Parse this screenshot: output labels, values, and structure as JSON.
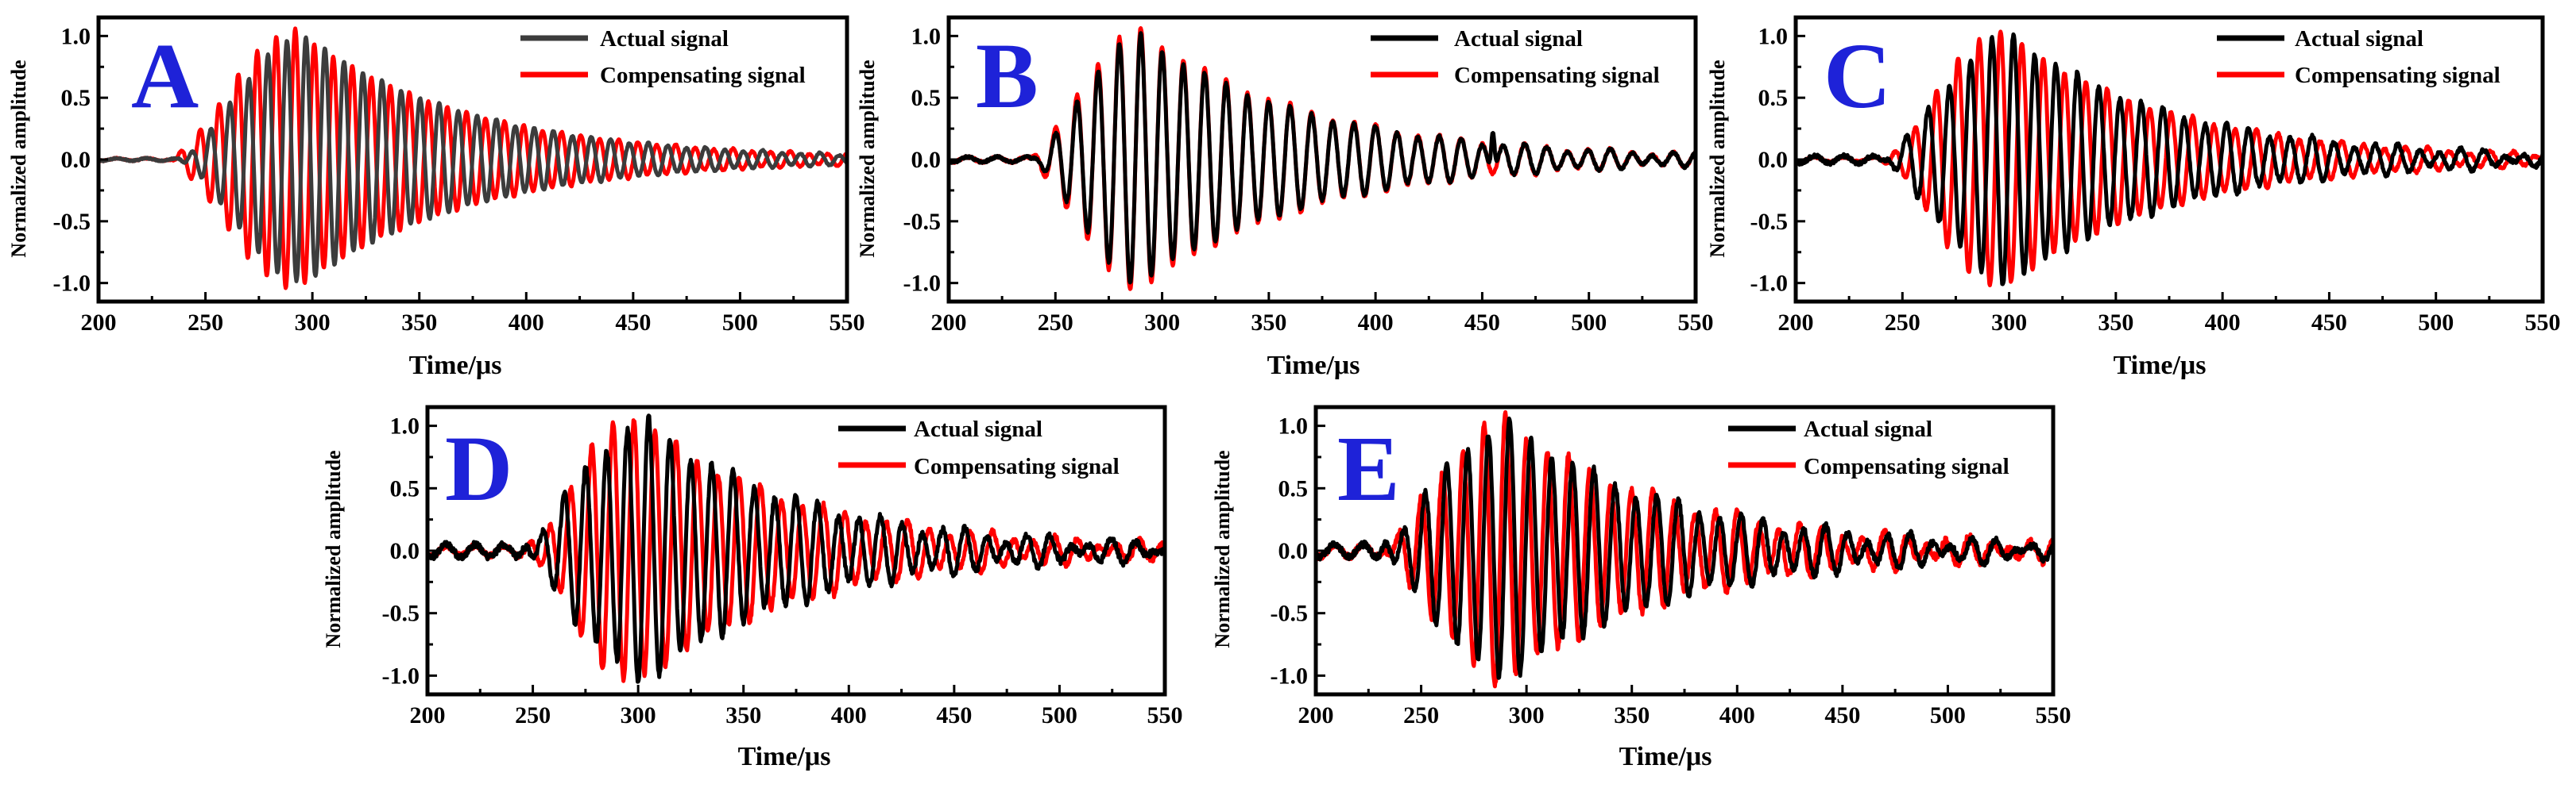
{
  "chart_data": [
    {
      "type": "line",
      "panel": "A",
      "xlabel": "Time/μs",
      "ylabel": "Normalized amplitude",
      "xlim": [
        200,
        550
      ],
      "ylim": [
        -1.15,
        1.15
      ],
      "xticks": [
        "200",
        "250",
        "300",
        "350",
        "400",
        "450",
        "500",
        "550"
      ],
      "yticks": [
        "-1.0",
        "-0.5",
        "0.0",
        "0.5",
        "1.0"
      ],
      "series": [
        {
          "name": "Actual signal",
          "color": "#3c3c3c",
          "onset_us": 236,
          "peak_time_us": 297,
          "peak_amplitude": 1.0,
          "period_us": 8.9,
          "decay_to_us": 545,
          "noise_amplitude": 0.01
        },
        {
          "name": "Compensating signal",
          "color": "#ff0000",
          "onset_us": 232,
          "peak_time_us": 292,
          "peak_amplitude": 1.05,
          "period_us": 8.9,
          "decay_to_us": 545,
          "noise_amplitude": 0.01
        }
      ]
    },
    {
      "type": "line",
      "panel": "B",
      "xlabel": "Time/μs",
      "ylabel": "Normalized amplitude",
      "xlim": [
        200,
        550
      ],
      "ylim": [
        -1.15,
        1.15
      ],
      "xticks": [
        "200",
        "250",
        "300",
        "350",
        "400",
        "450",
        "500",
        "550"
      ],
      "yticks": [
        "-1.0",
        "-0.5",
        "0.0",
        "0.5",
        "1.0"
      ],
      "series": [
        {
          "name": "Actual signal",
          "color": "#000000",
          "onset_us": 238,
          "peak_time_us": 290,
          "peak_amplitude": 1.0,
          "period_us": 10,
          "decay_to_us": 545,
          "noise_amplitude": 0.02,
          "spike_time_us": 455,
          "spike_amplitude": 0.33
        },
        {
          "name": "Compensating signal",
          "color": "#ff0000",
          "onset_us": 236,
          "peak_time_us": 290,
          "peak_amplitude": 1.05,
          "period_us": 10,
          "decay_to_us": 545,
          "noise_amplitude": 0.02
        }
      ]
    },
    {
      "type": "line",
      "panel": "C",
      "xlabel": "Time/μs",
      "ylabel": "Normalized amplitude",
      "xlim": [
        200,
        550
      ],
      "ylim": [
        -1.15,
        1.15
      ],
      "xticks": [
        "200",
        "250",
        "300",
        "350",
        "400",
        "450",
        "500",
        "550"
      ],
      "yticks": [
        "-1.0",
        "-0.5",
        "0.0",
        "0.5",
        "1.0"
      ],
      "series": [
        {
          "name": "Actual signal",
          "color": "#000000",
          "onset_us": 238,
          "peak_time_us": 302,
          "peak_amplitude": 1.0,
          "period_us": 10,
          "decay_to_us": 545,
          "noise_amplitude": 0.03
        },
        {
          "name": "Compensating signal",
          "color": "#ff0000",
          "onset_us": 240,
          "peak_time_us": 296,
          "peak_amplitude": 1.05,
          "period_us": 10,
          "decay_to_us": 545,
          "noise_amplitude": 0.02
        }
      ]
    },
    {
      "type": "line",
      "panel": "D",
      "xlabel": "Time/μs",
      "ylabel": "Normalized amplitude",
      "xlim": [
        200,
        550
      ],
      "ylim": [
        -1.15,
        1.15
      ],
      "xticks": [
        "200",
        "250",
        "300",
        "350",
        "400",
        "450",
        "500",
        "550"
      ],
      "yticks": [
        "-1.0",
        "-0.5",
        "0.0",
        "0.5",
        "1.0"
      ],
      "series": [
        {
          "name": "Actual signal",
          "color": "#000000",
          "onset_us": 240,
          "peak_time_us": 305,
          "peak_amplitude": 1.02,
          "period_us": 10,
          "decay_to_us": 545,
          "noise_amplitude": 0.05
        },
        {
          "name": "Compensating signal",
          "color": "#ff0000",
          "onset_us": 245,
          "peak_time_us": 298,
          "peak_amplitude": 1.08,
          "period_us": 10,
          "decay_to_us": 545,
          "noise_amplitude": 0.04
        }
      ]
    },
    {
      "type": "line",
      "panel": "E",
      "xlabel": "Time/μs",
      "ylabel": "Normalized amplitude",
      "xlim": [
        200,
        550
      ],
      "ylim": [
        -1.15,
        1.15
      ],
      "xticks": [
        "200",
        "250",
        "300",
        "350",
        "400",
        "450",
        "500",
        "550"
      ],
      "yticks": [
        "-1.0",
        "-0.5",
        "0.0",
        "0.5",
        "1.0"
      ],
      "series": [
        {
          "name": "Actual signal",
          "color": "#000000",
          "onset_us": 225,
          "peak_time_us": 292,
          "peak_amplitude": 1.0,
          "period_us": 10,
          "decay_to_us": 545,
          "noise_amplitude": 0.05
        },
        {
          "name": "Compensating signal",
          "color": "#ff0000",
          "onset_us": 228,
          "peak_time_us": 290,
          "peak_amplitude": 1.05,
          "period_us": 10,
          "decay_to_us": 545,
          "noise_amplitude": 0.05
        }
      ]
    }
  ],
  "panel_label_color": "#1e22d8"
}
